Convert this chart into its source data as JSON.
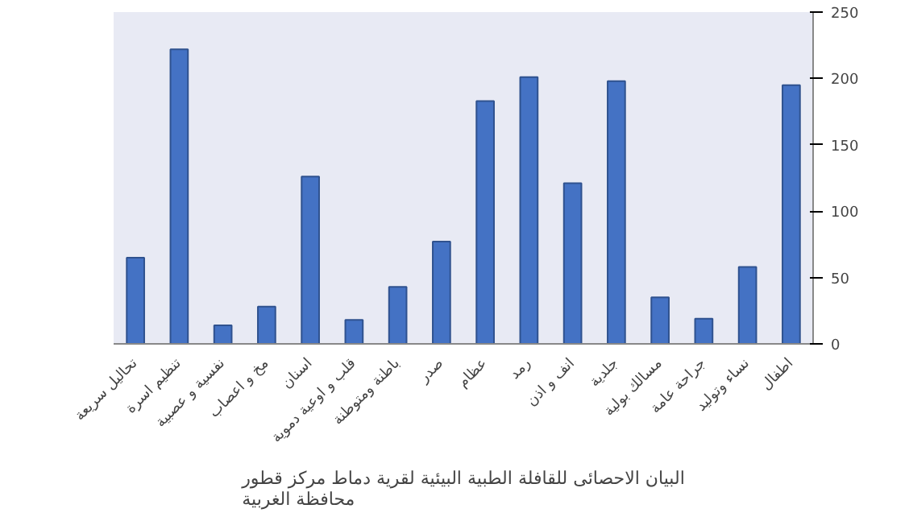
{
  "chart_data": {
    "type": "bar",
    "title": "البيان الاحصائى للقافلة الطبية البيئية لقرية دماط مركز قطور\nمحافظة الغربية",
    "categories": [
      "تحاليل سريعة",
      "تنظيم اسرة",
      "نفسية و عصبية",
      "مخ و اعصاب",
      "اسنان",
      "قلب و اوعية دموية",
      "باطنة ومتوطنة",
      "صدر",
      "عظام",
      "رمد",
      "انف و اذن",
      "جلدية",
      "مسالك بولية",
      "جراحة عامة",
      "نساء وتوليد",
      "اطفال"
    ],
    "values": [
      65,
      222,
      14,
      28,
      126,
      18,
      43,
      77,
      183,
      201,
      121,
      198,
      35,
      19,
      58,
      195
    ],
    "color": "#4472c4",
    "ylim": [
      0,
      250
    ],
    "yticks": [
      0,
      50,
      100,
      150,
      200,
      250
    ],
    "grid": false
  }
}
